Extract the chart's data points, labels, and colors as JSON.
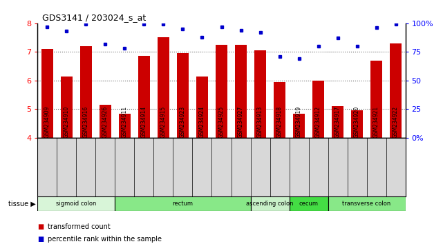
{
  "title": "GDS3141 / 203024_s_at",
  "samples": [
    "GSM234909",
    "GSM234910",
    "GSM234916",
    "GSM234926",
    "GSM234911",
    "GSM234914",
    "GSM234915",
    "GSM234923",
    "GSM234924",
    "GSM234925",
    "GSM234927",
    "GSM234913",
    "GSM234918",
    "GSM234919",
    "GSM234912",
    "GSM234917",
    "GSM234920",
    "GSM234921",
    "GSM234922"
  ],
  "transformed_counts": [
    7.1,
    6.15,
    7.2,
    5.15,
    4.85,
    6.85,
    7.5,
    6.95,
    6.15,
    7.25,
    7.25,
    7.05,
    5.95,
    4.85,
    6.0,
    5.1,
    4.95,
    6.7,
    7.3
  ],
  "percentile_ranks": [
    97,
    93,
    99,
    82,
    78,
    99,
    99,
    95,
    88,
    97,
    94,
    92,
    71,
    69,
    80,
    87,
    80,
    96,
    99
  ],
  "ylim": [
    4,
    8
  ],
  "yticks": [
    4,
    5,
    6,
    7,
    8
  ],
  "right_yticks": [
    0,
    25,
    50,
    75,
    100
  ],
  "right_ylabels": [
    "0%",
    "25",
    "50",
    "75",
    "100%"
  ],
  "bar_color": "#cc0000",
  "dot_color": "#0000cc",
  "tissue_groups": [
    {
      "label": "sigmoid colon",
      "start": 0,
      "end": 3,
      "color": "#d8f5d8"
    },
    {
      "label": "rectum",
      "start": 4,
      "end": 10,
      "color": "#88e888"
    },
    {
      "label": "ascending colon",
      "start": 11,
      "end": 12,
      "color": "#c8f0c8"
    },
    {
      "label": "cecum",
      "start": 13,
      "end": 14,
      "color": "#44dd44"
    },
    {
      "label": "transverse colon",
      "start": 15,
      "end": 18,
      "color": "#88e888"
    }
  ],
  "sample_bg_color": "#d8d8d8",
  "grid_color": "#666666"
}
